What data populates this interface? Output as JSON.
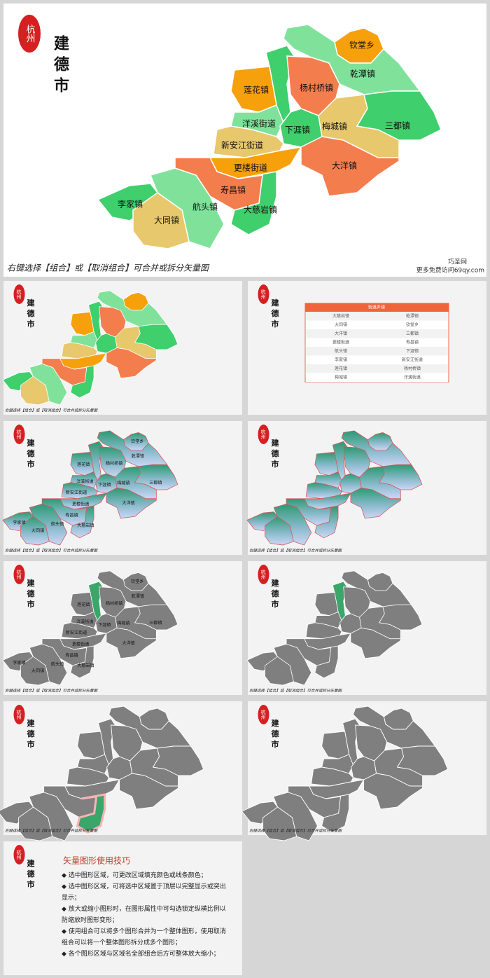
{
  "seal": "杭州",
  "city": "建德市",
  "regions": [
    "钦堂乡",
    "乾潭镇",
    "莲花镇",
    "杨村桥镇",
    "洋溪街道",
    "下涯镇",
    "梅城镇",
    "三都镇",
    "新安江街道",
    "大洋镇",
    "更楼街道",
    "寿昌镇",
    "李家镇",
    "航头镇",
    "大慈岩镇",
    "大同镇"
  ],
  "caption": "右键选择【组合】或【取消组合】可合并或拆分矢量图",
  "watermark": {
    "site": "巧圣网",
    "url": "更多免费访问69qy.com"
  },
  "table": {
    "header": "街道乡镇",
    "rows": [
      [
        "大慈岩镇",
        "乾潭镇"
      ],
      [
        "大同镇",
        "钦堂乡"
      ],
      [
        "大洋镇",
        "三都镇"
      ],
      [
        "更楼街道",
        "寿昌镇"
      ],
      [
        "航头镇",
        "下涯镇"
      ],
      [
        "李家镇",
        "新安江街道"
      ],
      [
        "莲花镇",
        "杨村桥镇"
      ],
      [
        "梅城镇",
        "洋溪街道"
      ]
    ]
  },
  "tips": {
    "title": "矢量图形使用技巧",
    "items": [
      "选中图形区域，可更改区域填充颜色或线条颜色；",
      "选中图形区域，可将选中区域置于顶层以完整显示或突出显示；",
      "放大或缩小图形时，在图形属性中可勾选锁定纵横比例以防缩放时图形变形；",
      "使用组合可以将多个图形合并为一个整体图形，使用取消组合可以将一个整体图形拆分成多个图形；",
      "各个图形区域与区域名全部组合后方可整体放大缩小；"
    ]
  }
}
